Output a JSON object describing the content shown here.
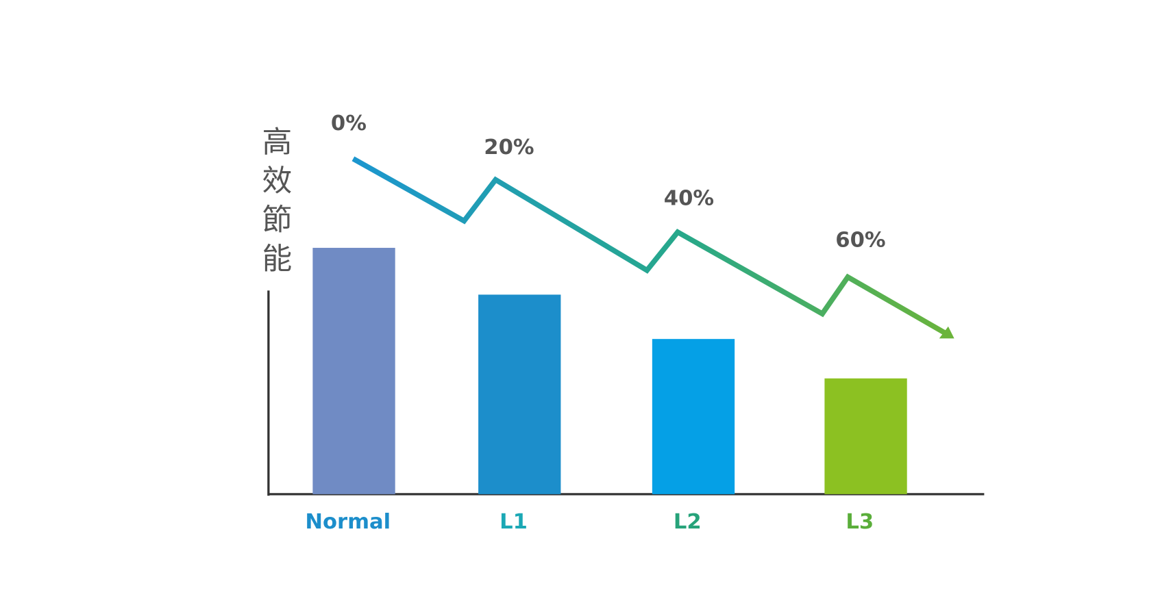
{
  "chart_data": {
    "type": "bar",
    "y_label": "高效節能",
    "categories": [
      "Normal",
      "L1",
      "L2",
      "L3"
    ],
    "values": [
      100,
      81,
      63,
      47
    ],
    "colors": [
      "#708bc4",
      "#1c8ecb",
      "#05a0e6",
      "#8cc122"
    ],
    "label_colors": [
      "#1c8ecb",
      "#1ba8b5",
      "#27a37a",
      "#5aae3a"
    ],
    "annotations": [
      "0%",
      "20%",
      "40%",
      "60%"
    ],
    "ylim": [
      0,
      100
    ]
  }
}
